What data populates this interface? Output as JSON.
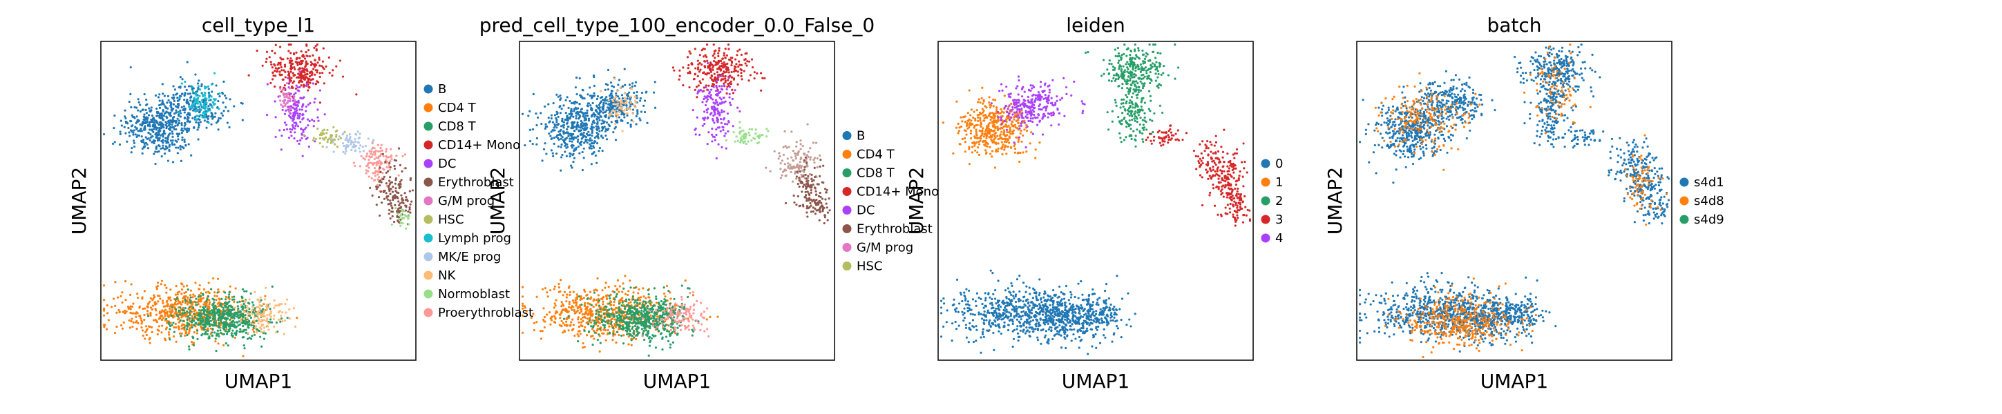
{
  "figure": {
    "background": "#ffffff"
  },
  "chart_data": [
    {
      "type": "scatter",
      "title": "cell_type_l1",
      "xlabel": "UMAP1",
      "ylabel": "UMAP2",
      "grid": false,
      "ticks": false,
      "legend": "right-outside",
      "legend_entries": [
        {
          "label": "B",
          "color": "#1f77b4"
        },
        {
          "label": "CD4 T",
          "color": "#ff7f0e"
        },
        {
          "label": "CD8 T",
          "color": "#279e68"
        },
        {
          "label": "CD14+ Mono",
          "color": "#d62728"
        },
        {
          "label": "DC",
          "color": "#aa40fc"
        },
        {
          "label": "Erythroblast",
          "color": "#8c564b"
        },
        {
          "label": "G/M prog",
          "color": "#e377c2"
        },
        {
          "label": "HSC",
          "color": "#b5bd61"
        },
        {
          "label": "Lymph prog",
          "color": "#17becf"
        },
        {
          "label": "MK/E prog",
          "color": "#aec7e8"
        },
        {
          "label": "NK",
          "color": "#ffbb78"
        },
        {
          "label": "Normoblast",
          "color": "#98df8a"
        },
        {
          "label": "Proerythroblast",
          "color": "#ff9896"
        }
      ]
    },
    {
      "type": "scatter",
      "title": "pred_cell_type_100_encoder_0.0_False_0",
      "xlabel": "UMAP1",
      "ylabel": "UMAP2",
      "grid": false,
      "ticks": false,
      "legend": "right-outside",
      "legend_entries": [
        {
          "label": "B",
          "color": "#1f77b4"
        },
        {
          "label": "CD4 T",
          "color": "#ff7f0e"
        },
        {
          "label": "CD8 T",
          "color": "#279e68"
        },
        {
          "label": "CD14+ Mono",
          "color": "#d62728"
        },
        {
          "label": "DC",
          "color": "#aa40fc"
        },
        {
          "label": "Erythroblast",
          "color": "#8c564b"
        },
        {
          "label": "G/M prog",
          "color": "#e377c2"
        },
        {
          "label": "HSC",
          "color": "#b5bd61"
        }
      ]
    },
    {
      "type": "scatter",
      "title": "leiden",
      "xlabel": "UMAP1",
      "ylabel": "UMAP2",
      "grid": false,
      "ticks": false,
      "legend": "right-outside",
      "legend_entries": [
        {
          "label": "0",
          "color": "#1f77b4"
        },
        {
          "label": "1",
          "color": "#ff7f0e"
        },
        {
          "label": "2",
          "color": "#279e68"
        },
        {
          "label": "3",
          "color": "#d62728"
        },
        {
          "label": "4",
          "color": "#aa40fc"
        }
      ]
    },
    {
      "type": "scatter",
      "title": "batch",
      "xlabel": "UMAP1",
      "ylabel": "UMAP2",
      "grid": false,
      "ticks": false,
      "legend": "right-outside",
      "legend_entries": [
        {
          "label": "s4d1",
          "color": "#1f77b4"
        },
        {
          "label": "s4d8",
          "color": "#ff7f0e"
        },
        {
          "label": "s4d9",
          "color": "#279e68"
        }
      ]
    }
  ]
}
